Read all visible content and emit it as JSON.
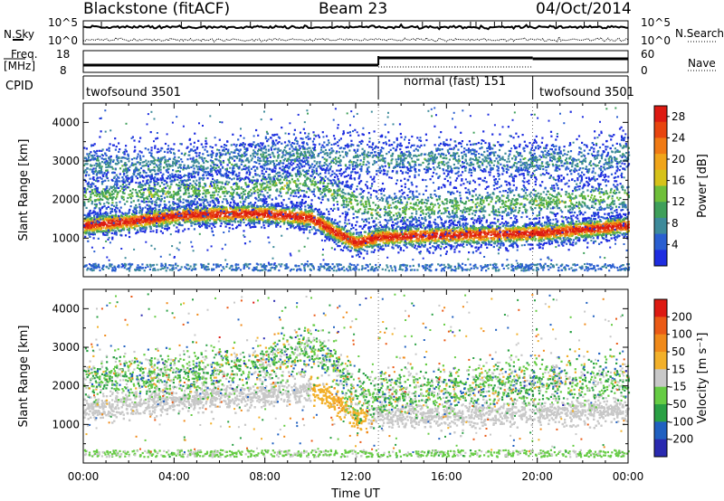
{
  "header": {
    "station": "Blackstone (fitACF)",
    "beam": "Beam 23",
    "date": "04/Oct/2014"
  },
  "top_labels": {
    "nsky": "N.Sky",
    "nsky_high": "10^5",
    "nsky_low": "10^0",
    "nsearch": "N.Search",
    "nsearch_high": "10^5",
    "nsearch_low": "10^0",
    "freq": "Freq.",
    "freq_unit": "[MHz]",
    "freq_high": "18",
    "freq_low": "8",
    "nave": "Nave",
    "nave_high": "60",
    "nave_low": "0",
    "cpid": "CPID"
  },
  "cpid_segments": [
    {
      "label": "twofsound 3501",
      "start_h": 0.0,
      "end_h": 13.0
    },
    {
      "label": "normal (fast) 151",
      "start_h": 13.0,
      "end_h": 19.8
    },
    {
      "label": "twofsound 3501",
      "start_h": 19.8,
      "end_h": 24.0
    }
  ],
  "chart_data": [
    {
      "type": "heatmap",
      "panel": "power",
      "xlabel": "",
      "ylabel": "Slant Range [km]",
      "xlim": [
        0,
        24
      ],
      "ylim": [
        0,
        4500
      ],
      "yticks": [
        1000,
        2000,
        3000,
        4000
      ],
      "colorbar": {
        "label": "Power [dB]",
        "ticks": [
          "4",
          "8",
          "12",
          "16",
          "20",
          "24",
          "28"
        ],
        "range": [
          0,
          30
        ],
        "colors": [
          "#1e2de0",
          "#2a5fd1",
          "#3d8a9a",
          "#3f9f5a",
          "#6fbf3a",
          "#d6c21a",
          "#f0a51a",
          "#f07a14",
          "#e8450f",
          "#dd1a12"
        ]
      },
      "scatter_bands": [
        {
          "name": "main_echo",
          "points": [
            [
              0,
              1350
            ],
            [
              2,
              1450
            ],
            [
              4,
              1600
            ],
            [
              6,
              1650
            ],
            [
              8,
              1650
            ],
            [
              10,
              1550
            ],
            [
              11,
              1200
            ],
            [
              12,
              900
            ],
            [
              13,
              1050
            ],
            [
              16,
              1100
            ],
            [
              20,
              1150
            ],
            [
              22,
              1250
            ],
            [
              24,
              1350
            ]
          ],
          "peak_db": 29
        },
        {
          "name": "upper_echo",
          "points": [
            [
              0,
              2100
            ],
            [
              3,
              2200
            ],
            [
              6,
              2300
            ],
            [
              8,
              2350
            ],
            [
              10,
              2500
            ],
            [
              11,
              2200
            ],
            [
              12,
              1900
            ],
            [
              13,
              1750
            ],
            [
              24,
              2100
            ]
          ],
          "peak_db": 12
        },
        {
          "name": "far_echo",
          "points": [
            [
              3,
              2900
            ],
            [
              6,
              3000
            ],
            [
              9,
              3200
            ],
            [
              10.5,
              3100
            ],
            [
              23,
              3000
            ],
            [
              24,
              3300
            ]
          ],
          "peak_db": 8
        }
      ]
    },
    {
      "type": "heatmap",
      "panel": "velocity",
      "xlabel": "Time UT",
      "ylabel": "Slant Range [km]",
      "xlim": [
        0,
        24
      ],
      "ylim": [
        0,
        4500
      ],
      "yticks": [
        1000,
        2000,
        3000,
        4000
      ],
      "xticks": [
        "00:00",
        "04:00",
        "08:00",
        "12:00",
        "16:00",
        "20:00",
        "00:00"
      ],
      "colorbar": {
        "label": "Velocity [m s⁻¹]",
        "ticks": [
          "200",
          "100",
          "50",
          "15",
          "-15",
          "-50",
          "-100",
          "-200"
        ],
        "range": [
          -250,
          250
        ],
        "colors": [
          "#2a2ab0",
          "#2060c0",
          "#2aa044",
          "#66cc44",
          "#c8c8c8",
          "#f2b02a",
          "#f08a1a",
          "#ea5a16",
          "#dd1a12"
        ]
      },
      "scatter_bands": [
        {
          "name": "ground_scatter",
          "points": [
            [
              0,
              1400
            ],
            [
              4,
              1650
            ],
            [
              8,
              1800
            ],
            [
              10,
              1900
            ],
            [
              11,
              1700
            ],
            [
              12,
              1200
            ],
            [
              16,
              1250
            ],
            [
              20,
              1300
            ],
            [
              24,
              1400
            ]
          ],
          "velocity": 0
        },
        {
          "name": "upper_flow",
          "points": [
            [
              0,
              2200
            ],
            [
              4,
              2300
            ],
            [
              8,
              2500
            ],
            [
              10,
              3000
            ],
            [
              11,
              2600
            ],
            [
              12,
              1700
            ],
            [
              16,
              2000
            ],
            [
              24,
              2200
            ]
          ],
          "velocity": -60
        }
      ]
    }
  ]
}
